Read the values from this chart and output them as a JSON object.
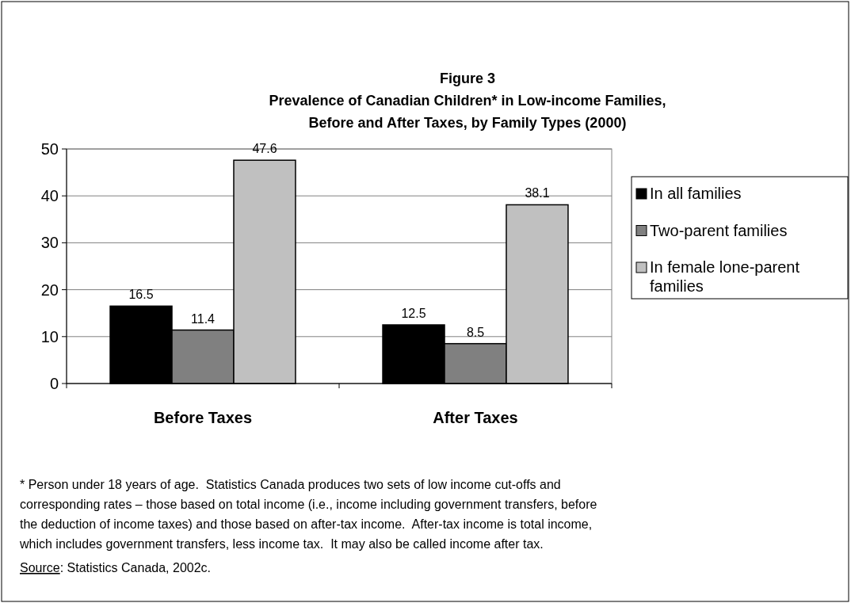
{
  "chart_data": {
    "type": "bar",
    "title": "Figure 3",
    "subtitle": "Prevalence of Canadian Children* in Low-income Families, Before and After Taxes, by Family Types (2000)",
    "categories": [
      "Before Taxes",
      "After Taxes"
    ],
    "series": [
      {
        "name": "In all families",
        "color": "#000000",
        "values": [
          16.5,
          12.5
        ]
      },
      {
        "name": "Two-parent families",
        "color": "#808080",
        "values": [
          11.4,
          8.5
        ]
      },
      {
        "name": "In female lone-parent families",
        "color": "#c0c0c0",
        "values": [
          47.6,
          38.1
        ]
      }
    ],
    "ylim": [
      0,
      50
    ],
    "yticks": [
      0,
      10,
      20,
      30,
      40,
      50
    ],
    "grid": "y",
    "legend": "right",
    "data_labels": true,
    "annotations": [
      "* Person under 18 years of age.  Statistics Canada produces two sets of low income cut-offs and corresponding rates – those based on total income (i.e., income including government transfers, before the deduction of income taxes) and those based on after-tax income.  After-tax income is total income, which includes government transfers, less income tax.  It may also be called income after tax.",
      "Source: Statistics Canada, 2002c."
    ]
  }
}
